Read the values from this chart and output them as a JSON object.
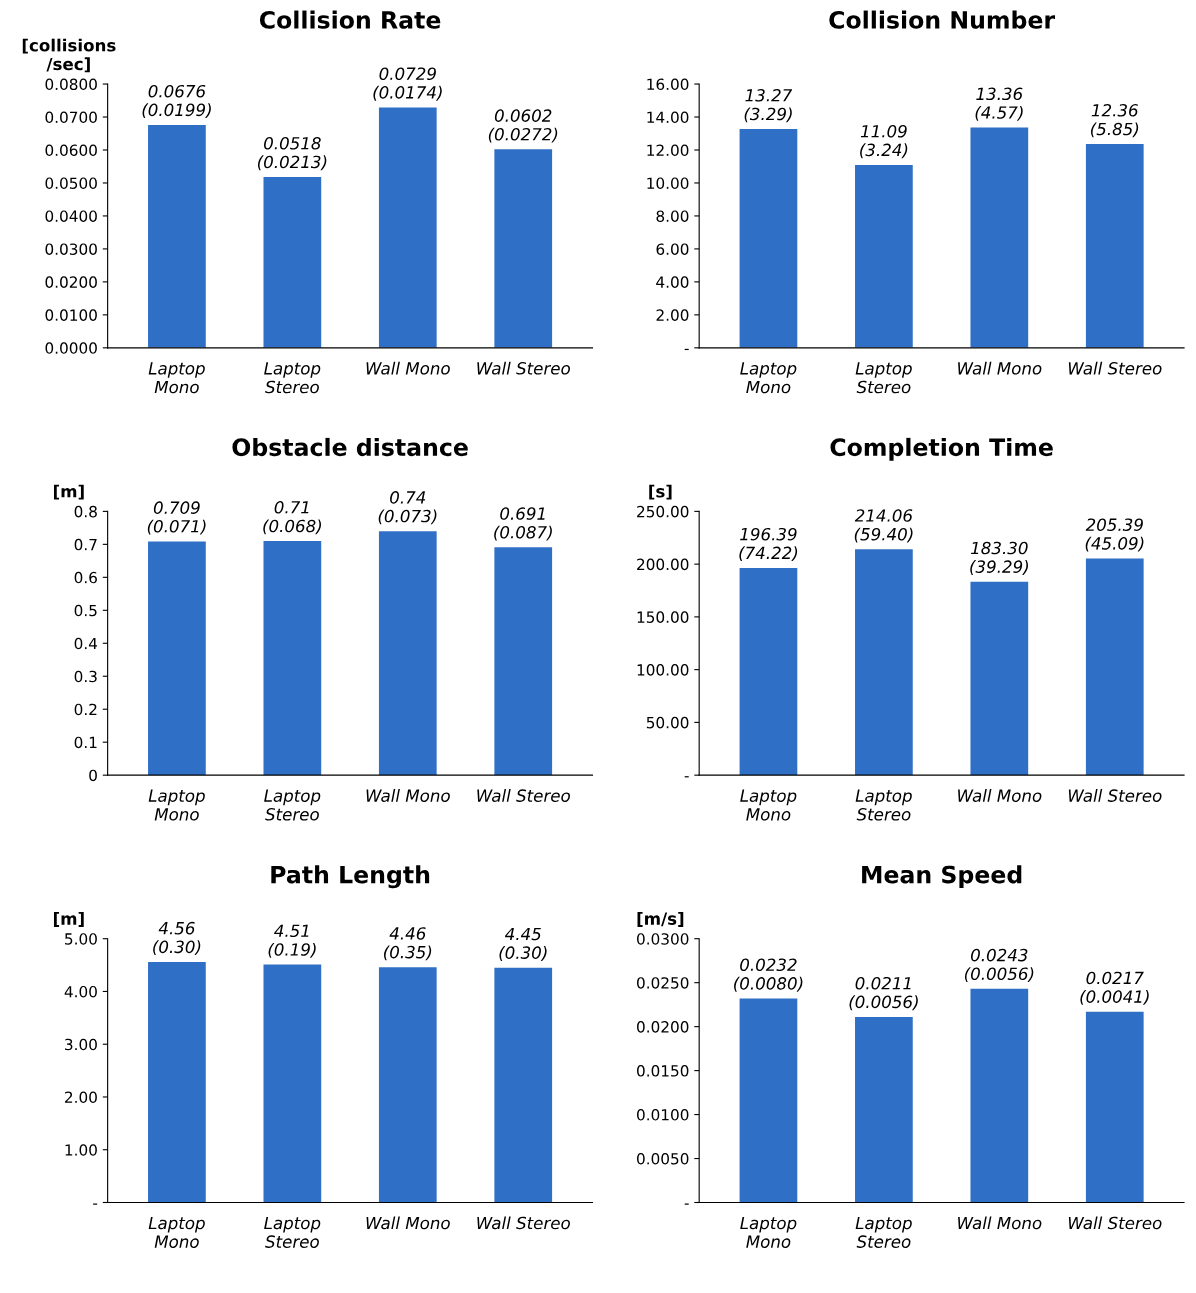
{
  "chart_data": [
    {
      "type": "bar",
      "title": "Collision Rate",
      "ylabel": "[collisions\n/sec]",
      "categories": [
        "Laptop\nMono",
        "Laptop\nStereo",
        "Wall Mono",
        "Wall Stereo"
      ],
      "values": [
        0.0676,
        0.0518,
        0.0729,
        0.0602
      ],
      "value_labels": [
        "0.0676\n(0.0199)",
        "0.0518\n(0.0213)",
        "0.0729\n(0.0174)",
        "0.0602\n(0.0272)"
      ],
      "color": "#2f6fc6",
      "ylim": [
        0,
        0.08
      ],
      "yticks": [
        {
          "value": 0,
          "label": "0.0000"
        },
        {
          "value": 0.01,
          "label": "0.0100"
        },
        {
          "value": 0.02,
          "label": "0.0200"
        },
        {
          "value": 0.03,
          "label": "0.0300"
        },
        {
          "value": 0.04,
          "label": "0.0400"
        },
        {
          "value": 0.05,
          "label": "0.0500"
        },
        {
          "value": 0.06,
          "label": "0.0600"
        },
        {
          "value": 0.07,
          "label": "0.0700"
        },
        {
          "value": 0.08,
          "label": "0.0800"
        }
      ],
      "grid": false,
      "legend": false
    },
    {
      "type": "bar",
      "title": "Collision Number",
      "categories": [
        "Laptop\nMono",
        "Laptop\nStereo",
        "Wall Mono",
        "Wall Stereo"
      ],
      "values": [
        13.27,
        11.09,
        13.36,
        12.36
      ],
      "value_labels": [
        "13.27\n(3.29)",
        "11.09\n(3.24)",
        "13.36\n(4.57)",
        "12.36\n(5.85)"
      ],
      "color": "#2f6fc6",
      "ylim": [
        0,
        16
      ],
      "yticks": [
        {
          "value": 0,
          "label": "-"
        },
        {
          "value": 2,
          "label": "2.00"
        },
        {
          "value": 4,
          "label": "4.00"
        },
        {
          "value": 6,
          "label": "6.00"
        },
        {
          "value": 8,
          "label": "8.00"
        },
        {
          "value": 10,
          "label": "10.00"
        },
        {
          "value": 12,
          "label": "12.00"
        },
        {
          "value": 14,
          "label": "14.00"
        },
        {
          "value": 16,
          "label": "16.00"
        }
      ],
      "grid": false,
      "legend": false
    },
    {
      "type": "bar",
      "title": "Obstacle distance",
      "ylabel": "[m]",
      "categories": [
        "Laptop\nMono",
        "Laptop\nStereo",
        "Wall Mono",
        "Wall Stereo"
      ],
      "values": [
        0.709,
        0.71,
        0.74,
        0.691
      ],
      "value_labels": [
        "0.709\n(0.071)",
        "0.71\n(0.068)",
        "0.74\n(0.073)",
        "0.691\n(0.087)"
      ],
      "color": "#2f6fc6",
      "ylim": [
        0,
        0.8
      ],
      "yticks": [
        0,
        0.1,
        0.2,
        0.3,
        0.4,
        0.5,
        0.6,
        0.7,
        0.8
      ],
      "grid": false,
      "legend": false
    },
    {
      "type": "bar",
      "title": "Completion Time",
      "ylabel": "[s]",
      "categories": [
        "Laptop\nMono",
        "Laptop\nStereo",
        "Wall Mono",
        "Wall Stereo"
      ],
      "values": [
        196.39,
        214.06,
        183.3,
        205.39
      ],
      "value_labels": [
        "196.39\n(74.22)",
        "214.06\n(59.40)",
        "183.30\n(39.29)",
        "205.39\n(45.09)"
      ],
      "color": "#2f6fc6",
      "ylim": [
        0,
        250
      ],
      "yticks": [
        {
          "value": 0,
          "label": "-"
        },
        {
          "value": 50,
          "label": "50.00"
        },
        {
          "value": 100,
          "label": "100.00"
        },
        {
          "value": 150,
          "label": "150.00"
        },
        {
          "value": 200,
          "label": "200.00"
        },
        {
          "value": 250,
          "label": "250.00"
        }
      ],
      "grid": false,
      "legend": false
    },
    {
      "type": "bar",
      "title": "Path Length",
      "ylabel": "[m]",
      "categories": [
        "Laptop\nMono",
        "Laptop\nStereo",
        "Wall Mono",
        "Wall Stereo"
      ],
      "values": [
        4.56,
        4.51,
        4.46,
        4.45
      ],
      "value_labels": [
        "4.56\n(0.30)",
        "4.51\n(0.19)",
        "4.46\n(0.35)",
        "4.45\n(0.30)"
      ],
      "color": "#2f6fc6",
      "ylim": [
        0,
        5
      ],
      "yticks": [
        {
          "value": 0,
          "label": "-"
        },
        {
          "value": 1,
          "label": "1.00"
        },
        {
          "value": 2,
          "label": "2.00"
        },
        {
          "value": 3,
          "label": "3.00"
        },
        {
          "value": 4,
          "label": "4.00"
        },
        {
          "value": 5,
          "label": "5.00"
        }
      ],
      "grid": false,
      "legend": false
    },
    {
      "type": "bar",
      "title": "Mean Speed",
      "ylabel": "[m/s]",
      "categories": [
        "Laptop\nMono",
        "Laptop\nStereo",
        "Wall Mono",
        "Wall Stereo"
      ],
      "values": [
        0.0232,
        0.0211,
        0.0243,
        0.0217
      ],
      "value_labels": [
        "0.0232\n(0.0080)",
        "0.0211\n(0.0056)",
        "0.0243\n(0.0056)",
        "0.0217\n(0.0041)"
      ],
      "color": "#2f6fc6",
      "ylim": [
        0,
        0.03
      ],
      "yticks": [
        {
          "value": 0,
          "label": "-"
        },
        {
          "value": 0.005,
          "label": "0.0050"
        },
        {
          "value": 0.01,
          "label": "0.0100"
        },
        {
          "value": 0.015,
          "label": "0.0150"
        },
        {
          "value": 0.02,
          "label": "0.0200"
        },
        {
          "value": 0.025,
          "label": "0.0250"
        },
        {
          "value": 0.03,
          "label": "0.0300"
        }
      ],
      "grid": false,
      "legend": false
    }
  ]
}
